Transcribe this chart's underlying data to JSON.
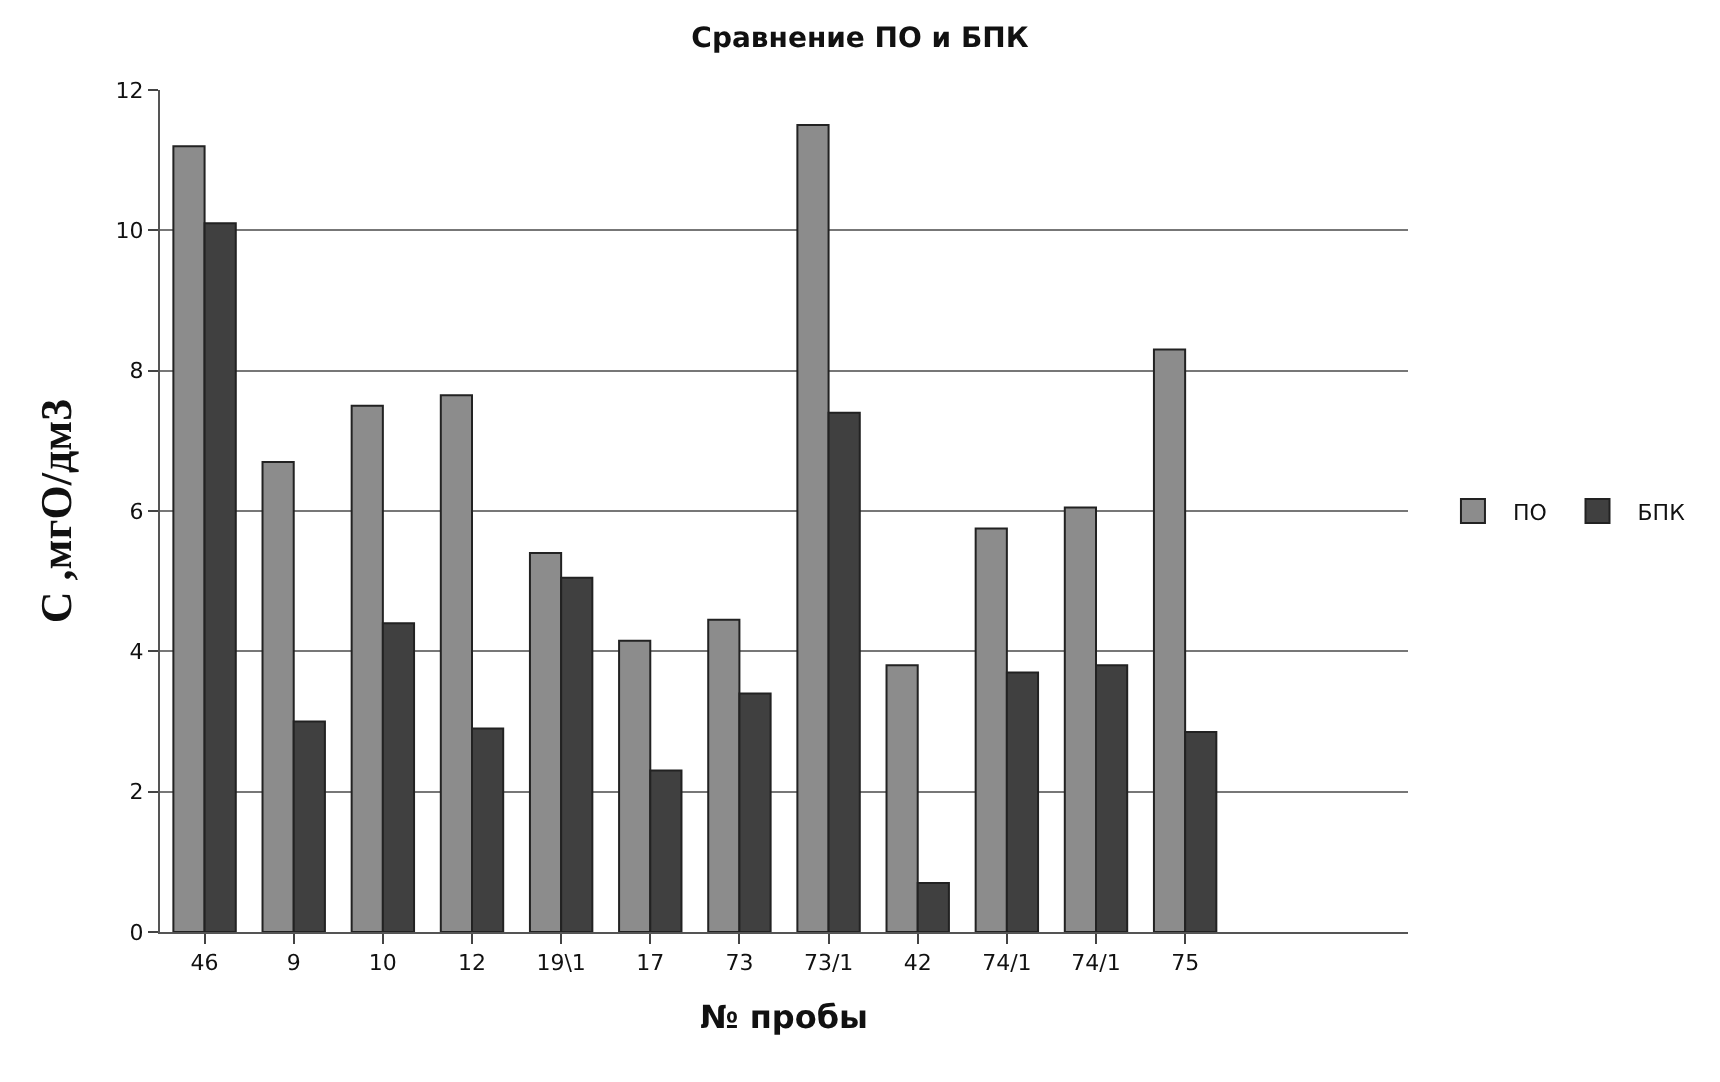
{
  "chart_data": {
    "type": "bar",
    "title": "Сравнение ПО и БПК",
    "xlabel": "№ пробы",
    "ylabel": "С ,мгО/дм3",
    "categories": [
      "46",
      "9",
      "10",
      "12",
      "19\\1",
      "17",
      "73",
      "73/1",
      "42",
      "74/1",
      "74/1",
      "75",
      null,
      null
    ],
    "series": [
      {
        "name": "ПО",
        "color": "#8c8c8c",
        "values": [
          11.2,
          6.7,
          7.5,
          7.65,
          5.4,
          4.15,
          4.45,
          11.5,
          3.8,
          5.75,
          6.05,
          8.3,
          null,
          null
        ]
      },
      {
        "name": "БПК",
        "color": "#404040",
        "values": [
          10.1,
          3.0,
          4.4,
          2.9,
          5.05,
          2.3,
          3.4,
          7.4,
          0.7,
          3.7,
          3.8,
          2.85,
          null,
          null
        ]
      }
    ],
    "ylim": [
      0,
      12
    ],
    "yticks": [
      0,
      2,
      4,
      6,
      8,
      10,
      12
    ],
    "grid": "y",
    "legend": "right"
  }
}
